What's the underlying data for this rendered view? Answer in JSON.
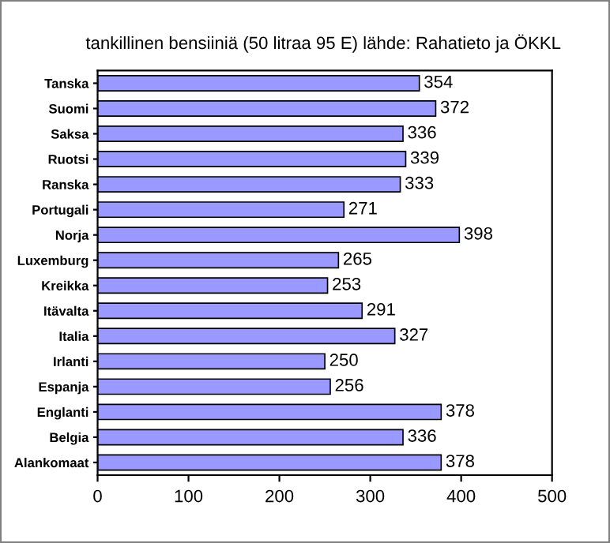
{
  "chart_data": {
    "type": "bar",
    "orientation": "horizontal",
    "title": "tankillinen bensiiniä (50 litraa 95 E) lähde: Rahatieto ja ÖKKL",
    "categories": [
      "Tanska",
      "Suomi",
      "Saksa",
      "Ruotsi",
      "Ranska",
      "Portugali",
      "Norja",
      "Luxemburg",
      "Kreikka",
      "Itävalta",
      "Italia",
      "Irlanti",
      "Espanja",
      "Englanti",
      "Belgia",
      "Alankomaat"
    ],
    "values": [
      354,
      372,
      336,
      339,
      333,
      271,
      398,
      265,
      253,
      291,
      327,
      250,
      256,
      378,
      336,
      378
    ],
    "color": "#9999ff",
    "xlim": [
      0,
      500
    ],
    "xticks": [
      0,
      100,
      200,
      300,
      400,
      500
    ],
    "grid": false,
    "data_labels": true
  }
}
